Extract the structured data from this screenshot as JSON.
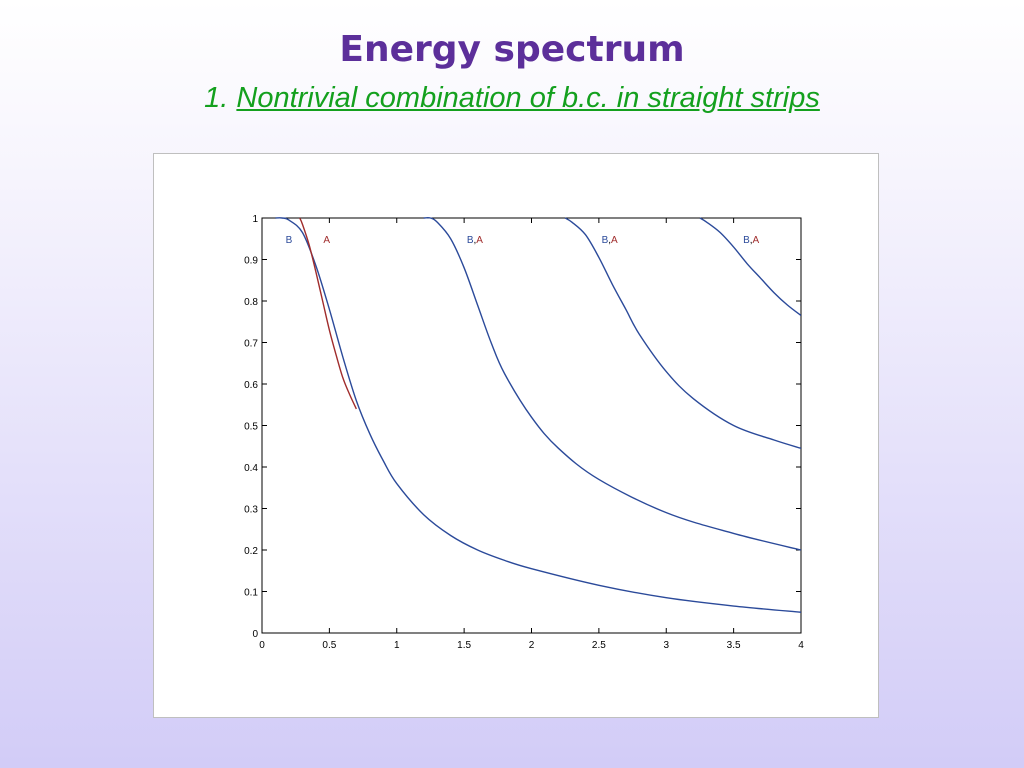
{
  "title": "Energy spectrum",
  "subtitle": {
    "number": "1.",
    "text": "Nontrivial combination of b.c. in straight strips"
  },
  "colors": {
    "title": "#5c2f9a",
    "subtitle": "#14a01e",
    "series_B": "#2b4a9a",
    "series_A": "#a02c2c"
  },
  "chart_data": {
    "type": "line",
    "xlim": [
      0,
      4
    ],
    "ylim": [
      0,
      1
    ],
    "xticks": [
      "0",
      "0.5",
      "1",
      "1.5",
      "2",
      "2.5",
      "3",
      "3.5",
      "4"
    ],
    "yticks": [
      "0",
      "0.1",
      "0.2",
      "0.3",
      "0.4",
      "0.5",
      "0.6",
      "0.7",
      "0.8",
      "0.9",
      "1"
    ],
    "grid": false,
    "series": [
      {
        "label": "B",
        "color": "#2b4a9a",
        "x": [
          0.1,
          0.15,
          0.2,
          0.3,
          0.4,
          0.5,
          0.6,
          0.7,
          0.8,
          0.9,
          1.0,
          1.2,
          1.4,
          1.6,
          1.8,
          2.0,
          2.5,
          3.0,
          3.5,
          4.0
        ],
        "y": [
          1.0,
          1.0,
          0.995,
          0.965,
          0.885,
          0.78,
          0.665,
          0.56,
          0.48,
          0.415,
          0.36,
          0.285,
          0.235,
          0.2,
          0.175,
          0.155,
          0.115,
          0.085,
          0.065,
          0.05
        ]
      },
      {
        "label": "A",
        "color": "#a02c2c",
        "x": [
          0.28,
          0.3,
          0.35,
          0.4,
          0.45,
          0.5,
          0.55,
          0.6,
          0.65,
          0.7
        ],
        "y": [
          1.0,
          0.985,
          0.935,
          0.87,
          0.8,
          0.73,
          0.67,
          0.615,
          0.575,
          0.54
        ]
      },
      {
        "label": "B,A",
        "color": "#2b4a9a",
        "x": [
          1.2,
          1.25,
          1.3,
          1.4,
          1.5,
          1.6,
          1.7,
          1.8,
          2.0,
          2.2,
          2.5,
          3.0,
          3.5,
          4.0
        ],
        "y": [
          1.0,
          1.0,
          0.99,
          0.95,
          0.88,
          0.79,
          0.7,
          0.625,
          0.52,
          0.445,
          0.37,
          0.29,
          0.24,
          0.2
        ]
      },
      {
        "label": "B,A",
        "color": "#2b4a9a",
        "x": [
          2.25,
          2.3,
          2.4,
          2.5,
          2.6,
          2.7,
          2.8,
          3.0,
          3.2,
          3.5,
          3.8,
          4.0
        ],
        "y": [
          1.0,
          0.99,
          0.96,
          0.905,
          0.84,
          0.78,
          0.72,
          0.63,
          0.565,
          0.5,
          0.465,
          0.445
        ]
      },
      {
        "label": "B,A",
        "color": "#2b4a9a",
        "x": [
          3.25,
          3.3,
          3.4,
          3.5,
          3.6,
          3.7,
          3.8,
          3.9,
          4.0
        ],
        "y": [
          1.0,
          0.99,
          0.965,
          0.93,
          0.89,
          0.855,
          0.82,
          0.79,
          0.765
        ]
      }
    ],
    "annotations": [
      {
        "parts": [
          {
            "text": "B",
            "color": "#2b4a9a"
          }
        ],
        "x": 0.2,
        "y": 0.95
      },
      {
        "parts": [
          {
            "text": "A",
            "color": "#a02c2c"
          }
        ],
        "x": 0.48,
        "y": 0.95
      },
      {
        "parts": [
          {
            "text": "B",
            "color": "#2b4a9a"
          },
          {
            "text": ",",
            "color": "#000000"
          },
          {
            "text": "A",
            "color": "#a02c2c"
          }
        ],
        "x": 1.58,
        "y": 0.95
      },
      {
        "parts": [
          {
            "text": "B",
            "color": "#2b4a9a"
          },
          {
            "text": ",",
            "color": "#000000"
          },
          {
            "text": "A",
            "color": "#a02c2c"
          }
        ],
        "x": 2.58,
        "y": 0.95
      },
      {
        "parts": [
          {
            "text": "B",
            "color": "#2b4a9a"
          },
          {
            "text": ",",
            "color": "#000000"
          },
          {
            "text": "A",
            "color": "#a02c2c"
          }
        ],
        "x": 3.63,
        "y": 0.95
      }
    ]
  }
}
